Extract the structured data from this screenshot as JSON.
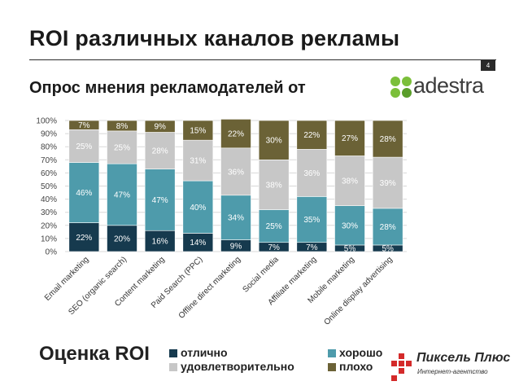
{
  "slide": {
    "title": "ROI различных каналов рекламы",
    "page_number": "4",
    "subtitle": "Опрос мнения рекламодателей от",
    "brand_logo_text": "adestra"
  },
  "legend": {
    "title": "Оценка ROI",
    "items": [
      {
        "name": "отлично",
        "color": "#163a4e"
      },
      {
        "name": "хорошо",
        "color": "#4e9bab"
      },
      {
        "name": "удовлетворительно",
        "color": "#c7c7c7"
      },
      {
        "name": "плохо",
        "color": "#6b6236"
      }
    ]
  },
  "agency": {
    "name": "Пиксель Плюс",
    "tagline": "Интернет-агентство"
  },
  "chart_data": {
    "type": "bar",
    "stacked": true,
    "categories": [
      "Email marketing",
      "SEO (organic search)",
      "Content marketing",
      "Paid Search (PPC)",
      "Offline direct marketing",
      "Social media",
      "Affiliate marketing",
      "Mobile marketing",
      "Online display advertising"
    ],
    "series": [
      {
        "name": "отлично",
        "color": "#163a4e",
        "values": [
          22,
          20,
          16,
          14,
          9,
          7,
          7,
          5,
          5
        ]
      },
      {
        "name": "хорошо",
        "color": "#4e9bab",
        "values": [
          46,
          47,
          47,
          40,
          34,
          25,
          35,
          30,
          28
        ]
      },
      {
        "name": "удовлетворительно",
        "color": "#c7c7c7",
        "values": [
          25,
          25,
          28,
          31,
          36,
          38,
          36,
          38,
          39
        ]
      },
      {
        "name": "плохо",
        "color": "#6b6236",
        "values": [
          7,
          8,
          9,
          15,
          22,
          30,
          22,
          27,
          28
        ]
      }
    ],
    "y_ticks": [
      "0%",
      "10%",
      "20%",
      "30%",
      "40%",
      "50%",
      "60%",
      "70%",
      "80%",
      "90%",
      "100%"
    ],
    "ylim": [
      0,
      100
    ],
    "grid": true,
    "legend_position": "bottom"
  }
}
